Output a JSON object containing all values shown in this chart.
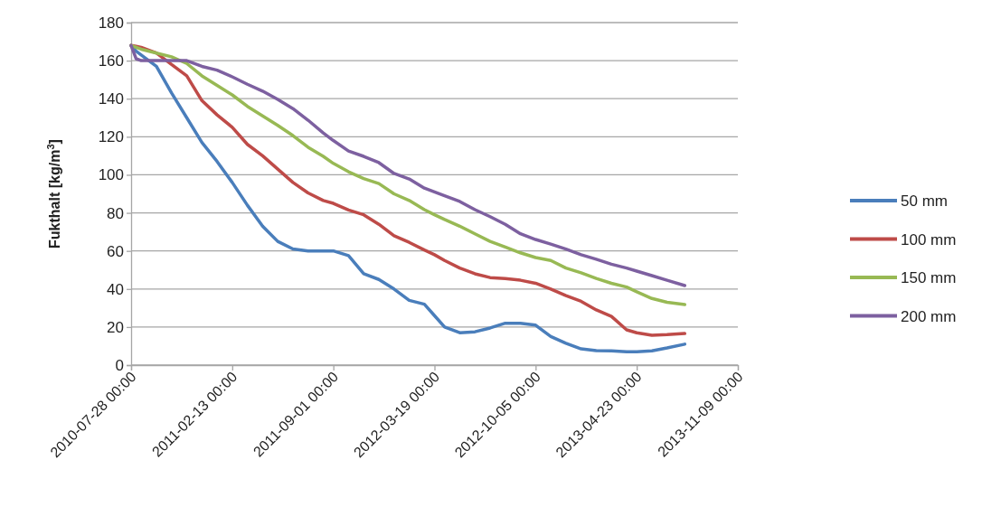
{
  "chart_data": {
    "type": "line",
    "ylabel": "Fukthalt [kg/m$^{3}$]",
    "x": [
      "2010-07-28",
      "2010-08-07",
      "2010-08-17",
      "2010-09-16",
      "2010-10-16",
      "2010-11-15",
      "2010-12-15",
      "2011-01-14",
      "2011-02-13",
      "2011-03-15",
      "2011-04-14",
      "2011-05-14",
      "2011-06-13",
      "2011-07-13",
      "2011-08-12",
      "2011-09-01",
      "2011-10-01",
      "2011-10-31",
      "2011-11-30",
      "2011-12-30",
      "2012-01-29",
      "2012-02-28",
      "2012-03-19",
      "2012-04-08",
      "2012-05-08",
      "2012-06-07",
      "2012-07-07",
      "2012-08-06",
      "2012-09-05",
      "2012-10-05",
      "2012-11-04",
      "2012-12-04",
      "2013-01-03",
      "2013-02-02",
      "2013-03-04",
      "2013-04-03",
      "2013-04-23",
      "2013-05-23",
      "2013-06-22",
      "2013-07-27"
    ],
    "series": [
      {
        "name": "50 mm",
        "color": "#4a7ebb",
        "values": [
          168,
          165,
          163,
          157,
          143,
          130,
          117,
          107,
          96,
          84,
          73,
          65,
          61,
          60,
          60,
          60,
          57.5,
          48,
          45,
          40,
          34,
          32,
          26,
          20,
          17,
          17.5,
          19.5,
          22,
          22,
          21,
          15,
          11.5,
          8.5,
          7.6,
          7.5,
          7,
          7,
          7.5,
          9,
          11
        ]
      },
      {
        "name": "100 mm",
        "color": "#be4b48",
        "values": [
          168,
          167.5,
          167,
          164,
          158,
          152,
          139,
          131.5,
          125,
          116,
          110,
          103,
          96,
          90.5,
          86.5,
          85,
          81.5,
          79,
          74,
          68,
          64.5,
          60.5,
          58,
          55,
          51,
          48,
          46,
          45.5,
          44.6,
          43,
          40,
          36.5,
          33.5,
          29,
          25.6,
          18.5,
          17,
          15.7,
          16,
          16.6
        ]
      },
      {
        "name": "150 mm",
        "color": "#98b954",
        "values": [
          168,
          167,
          166,
          164,
          162,
          158.5,
          152,
          147,
          142,
          136,
          131,
          126,
          120.6,
          114.5,
          109.7,
          106,
          101.6,
          98,
          95.4,
          90,
          86.5,
          81.7,
          79,
          76.5,
          73,
          69,
          65,
          62,
          59,
          56.5,
          55,
          51,
          48.5,
          45.5,
          43,
          41,
          38.5,
          35,
          33,
          31.8
        ]
      },
      {
        "name": "200 mm",
        "color": "#7d60a0",
        "values": [
          168,
          161,
          160,
          160,
          160,
          160,
          157,
          155,
          151.5,
          147.6,
          144,
          139.6,
          134.8,
          128.7,
          122,
          118,
          112.5,
          109.7,
          106.4,
          100.7,
          97.8,
          93,
          91,
          89,
          86,
          81.7,
          78,
          74,
          69,
          66,
          63.6,
          61,
          58,
          55.6,
          53,
          51,
          49.4,
          47,
          44.6,
          41.8
        ]
      }
    ],
    "xlim": [
      "2010-07-28",
      "2013-11-09"
    ],
    "xticks": [
      {
        "value": "2010-07-28",
        "label": "2010-07-28 00:00"
      },
      {
        "value": "2011-02-13",
        "label": "2011-02-13 00:00"
      },
      {
        "value": "2011-09-01",
        "label": "2011-09-01 00:00"
      },
      {
        "value": "2012-03-19",
        "label": "2012-03-19 00:00"
      },
      {
        "value": "2012-10-05",
        "label": "2012-10-05 00:00"
      },
      {
        "value": "2013-04-23",
        "label": "2013-04-23 00:00"
      },
      {
        "value": "2013-11-09",
        "label": "2013-11-09 00:00"
      }
    ],
    "ylim": [
      0,
      180
    ],
    "yticks": [
      0,
      20,
      40,
      60,
      80,
      100,
      120,
      140,
      160,
      180
    ],
    "grid": "y",
    "legend": "right",
    "line_style": "solid",
    "marker": "none"
  }
}
